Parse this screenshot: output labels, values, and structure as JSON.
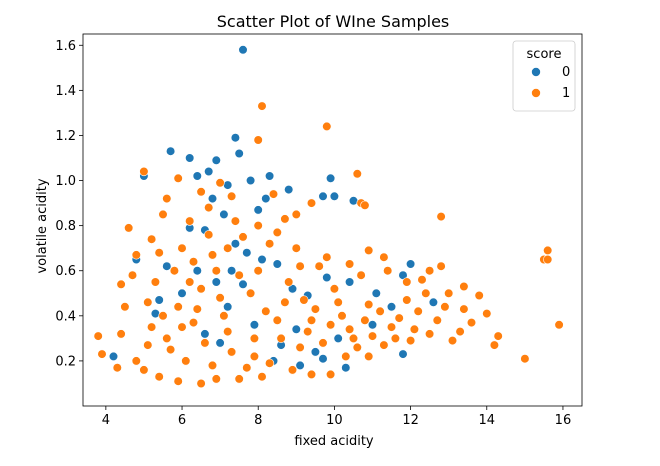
{
  "chart_data": {
    "type": "scatter",
    "title": "Scatter Plot of WIne Samples",
    "xlabel": "fixed acidity",
    "ylabel": "volatile acidity",
    "xlim": [
      3.4,
      16.5
    ],
    "ylim": [
      0.0,
      1.65
    ],
    "xticks": [
      4,
      6,
      8,
      10,
      12,
      14,
      16
    ],
    "yticks": [
      0.2,
      0.4,
      0.6,
      0.8,
      1.0,
      1.2,
      1.4,
      1.6
    ],
    "grid": false,
    "legend": {
      "title": "score",
      "placement": "top-right"
    },
    "series": [
      {
        "name": "0",
        "color": "#1f77b4",
        "points": [
          [
            7.6,
            1.58
          ],
          [
            5.7,
            1.13
          ],
          [
            6.2,
            1.1
          ],
          [
            7.4,
            1.19
          ],
          [
            7.5,
            1.12
          ],
          [
            6.9,
            1.09
          ],
          [
            6.4,
            1.02
          ],
          [
            6.7,
            1.04
          ],
          [
            7.2,
            0.98
          ],
          [
            7.8,
            1.0
          ],
          [
            8.3,
            1.02
          ],
          [
            5.0,
            1.02
          ],
          [
            8.8,
            0.96
          ],
          [
            9.9,
            1.01
          ],
          [
            10.0,
            0.93
          ],
          [
            9.7,
            0.93
          ],
          [
            10.5,
            0.91
          ],
          [
            8.0,
            0.87
          ],
          [
            8.2,
            0.92
          ],
          [
            7.1,
            0.85
          ],
          [
            6.8,
            0.92
          ],
          [
            7.4,
            0.72
          ],
          [
            6.6,
            0.78
          ],
          [
            6.2,
            0.79
          ],
          [
            6.4,
            0.6
          ],
          [
            6.9,
            0.55
          ],
          [
            7.3,
            0.6
          ],
          [
            7.7,
            0.68
          ],
          [
            8.1,
            0.65
          ],
          [
            8.5,
            0.63
          ],
          [
            7.6,
            0.54
          ],
          [
            7.2,
            0.44
          ],
          [
            8.9,
            0.52
          ],
          [
            9.3,
            0.49
          ],
          [
            9.8,
            0.57
          ],
          [
            10.4,
            0.55
          ],
          [
            11.1,
            0.5
          ],
          [
            11.5,
            0.44
          ],
          [
            11.8,
            0.58
          ],
          [
            12.0,
            0.63
          ],
          [
            12.6,
            0.46
          ],
          [
            11.0,
            0.36
          ],
          [
            10.1,
            0.3
          ],
          [
            9.5,
            0.24
          ],
          [
            9.0,
            0.34
          ],
          [
            8.6,
            0.27
          ],
          [
            10.3,
            0.17
          ],
          [
            11.8,
            0.23
          ],
          [
            4.2,
            0.22
          ],
          [
            5.3,
            0.41
          ],
          [
            5.4,
            0.47
          ],
          [
            5.6,
            0.62
          ],
          [
            4.8,
            0.65
          ],
          [
            6.0,
            0.5
          ],
          [
            6.6,
            0.32
          ],
          [
            7.0,
            0.28
          ],
          [
            7.9,
            0.36
          ],
          [
            8.4,
            0.2
          ],
          [
            9.1,
            0.18
          ],
          [
            9.7,
            0.21
          ]
        ]
      },
      {
        "name": "1",
        "color": "#ff7f0e",
        "points": [
          [
            8.1,
            1.33
          ],
          [
            9.8,
            1.24
          ],
          [
            8.0,
            1.18
          ],
          [
            5.0,
            1.04
          ],
          [
            10.6,
            1.03
          ],
          [
            10.7,
            0.9
          ],
          [
            10.8,
            0.89
          ],
          [
            12.8,
            0.84
          ],
          [
            15.6,
            0.69
          ],
          [
            15.5,
            0.65
          ],
          [
            15.6,
            0.65
          ],
          [
            15.9,
            0.36
          ],
          [
            15.0,
            0.21
          ],
          [
            14.2,
            0.27
          ],
          [
            14.3,
            0.31
          ],
          [
            14.0,
            0.41
          ],
          [
            13.8,
            0.49
          ],
          [
            13.4,
            0.53
          ],
          [
            12.8,
            0.62
          ],
          [
            12.5,
            0.6
          ],
          [
            12.9,
            0.44
          ],
          [
            13.3,
            0.33
          ],
          [
            13.1,
            0.29
          ],
          [
            3.8,
            0.31
          ],
          [
            3.9,
            0.23
          ],
          [
            4.3,
            0.17
          ],
          [
            4.4,
            0.32
          ],
          [
            4.5,
            0.44
          ],
          [
            4.4,
            0.54
          ],
          [
            4.7,
            0.58
          ],
          [
            4.8,
            0.67
          ],
          [
            4.6,
            0.79
          ],
          [
            5.2,
            0.74
          ],
          [
            5.5,
            0.85
          ],
          [
            5.6,
            0.92
          ],
          [
            5.9,
            1.01
          ],
          [
            6.5,
            0.95
          ],
          [
            7.0,
            0.99
          ],
          [
            7.3,
            0.93
          ],
          [
            8.4,
            0.94
          ],
          [
            9.4,
            0.9
          ],
          [
            9.0,
            0.85
          ],
          [
            8.7,
            0.83
          ],
          [
            6.2,
            0.82
          ],
          [
            6.7,
            0.88
          ],
          [
            11.3,
            0.66
          ],
          [
            11.9,
            0.55
          ],
          [
            12.4,
            0.5
          ],
          [
            12.2,
            0.42
          ],
          [
            12.1,
            0.34
          ],
          [
            11.6,
            0.3
          ],
          [
            11.3,
            0.27
          ],
          [
            10.9,
            0.22
          ],
          [
            10.5,
            0.3
          ],
          [
            9.9,
            0.14
          ],
          [
            9.4,
            0.14
          ],
          [
            8.9,
            0.16
          ],
          [
            8.1,
            0.13
          ],
          [
            7.5,
            0.12
          ],
          [
            6.9,
            0.12
          ],
          [
            6.5,
            0.1
          ],
          [
            5.9,
            0.11
          ],
          [
            5.4,
            0.13
          ],
          [
            5.0,
            0.16
          ],
          [
            4.8,
            0.2
          ],
          [
            5.1,
            0.27
          ],
          [
            5.6,
            0.3
          ],
          [
            6.3,
            0.37
          ],
          [
            7.1,
            0.4
          ],
          [
            8.2,
            0.42
          ],
          [
            9.2,
            0.47
          ],
          [
            10.2,
            0.4
          ],
          [
            10.9,
            0.45
          ],
          [
            11.7,
            0.39
          ],
          [
            12.7,
            0.38
          ],
          [
            13.6,
            0.37
          ],
          [
            13.0,
            0.5
          ],
          [
            12.3,
            0.56
          ],
          [
            11.4,
            0.6
          ],
          [
            10.7,
            0.58
          ],
          [
            10.0,
            0.52
          ],
          [
            9.6,
            0.62
          ],
          [
            9.0,
            0.7
          ],
          [
            8.5,
            0.77
          ],
          [
            8.0,
            0.8
          ],
          [
            7.6,
            0.75
          ],
          [
            7.2,
            0.7
          ],
          [
            6.8,
            0.67
          ],
          [
            6.3,
            0.64
          ],
          [
            5.8,
            0.6
          ],
          [
            5.3,
            0.55
          ],
          [
            5.1,
            0.46
          ],
          [
            5.5,
            0.4
          ],
          [
            6.0,
            0.35
          ],
          [
            6.6,
            0.28
          ],
          [
            7.3,
            0.24
          ],
          [
            7.9,
            0.22
          ],
          [
            8.6,
            0.3
          ],
          [
            9.3,
            0.33
          ],
          [
            9.9,
            0.36
          ],
          [
            10.4,
            0.34
          ],
          [
            11.0,
            0.31
          ],
          [
            11.5,
            0.35
          ],
          [
            12.0,
            0.29
          ],
          [
            6.1,
            0.2
          ],
          [
            6.8,
            0.18
          ],
          [
            7.7,
            0.17
          ],
          [
            8.3,
            0.19
          ],
          [
            9.1,
            0.26
          ],
          [
            9.7,
            0.28
          ],
          [
            10.6,
            0.26
          ],
          [
            5.7,
            0.25
          ],
          [
            6.4,
            0.43
          ],
          [
            7.0,
            0.48
          ],
          [
            7.8,
            0.5
          ],
          [
            8.8,
            0.55
          ],
          [
            9.5,
            0.43
          ],
          [
            10.1,
            0.46
          ],
          [
            10.8,
            0.38
          ],
          [
            11.2,
            0.42
          ],
          [
            11.9,
            0.47
          ],
          [
            12.5,
            0.32
          ],
          [
            13.4,
            0.43
          ],
          [
            6.0,
            0.7
          ],
          [
            6.7,
            0.76
          ],
          [
            7.4,
            0.82
          ],
          [
            8.3,
            0.72
          ],
          [
            9.1,
            0.62
          ],
          [
            9.8,
            0.66
          ],
          [
            10.4,
            0.63
          ],
          [
            10.9,
            0.69
          ],
          [
            5.2,
            0.35
          ],
          [
            5.9,
            0.44
          ],
          [
            6.5,
            0.52
          ],
          [
            7.5,
            0.58
          ],
          [
            8.0,
            0.6
          ],
          [
            8.7,
            0.46
          ],
          [
            9.4,
            0.38
          ],
          [
            10.3,
            0.22
          ],
          [
            7.2,
            0.33
          ],
          [
            7.9,
            0.3
          ],
          [
            8.5,
            0.38
          ],
          [
            6.9,
            0.6
          ],
          [
            6.2,
            0.55
          ],
          [
            5.4,
            0.68
          ]
        ]
      }
    ]
  }
}
